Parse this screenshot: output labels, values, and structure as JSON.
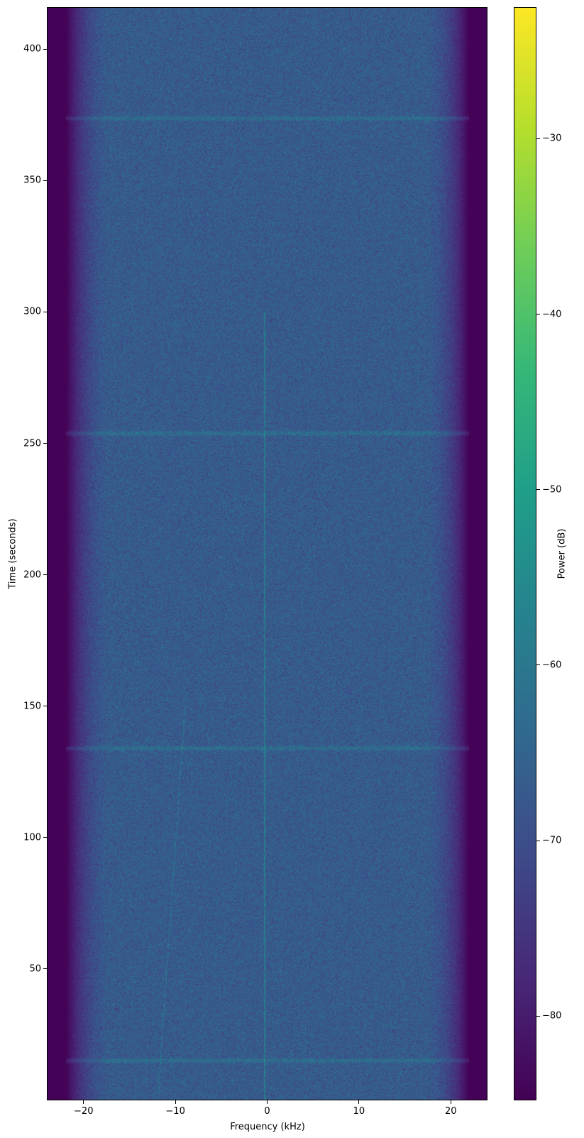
{
  "chart_data": {
    "type": "heatmap",
    "title": "",
    "xlabel": "Frequency (kHz)",
    "ylabel": "Time (seconds)",
    "colorbar_label": "Power (dB)",
    "colormap": "viridis",
    "xlim": [
      -24,
      24
    ],
    "ylim": [
      0,
      416
    ],
    "clim": [
      -84.8,
      -22.5
    ],
    "xticks": [
      -20,
      -10,
      0,
      10,
      20
    ],
    "xtick_labels": [
      "−20",
      "−10",
      "0",
      "10",
      "20"
    ],
    "yticks": [
      50,
      100,
      150,
      200,
      250,
      300,
      350,
      400
    ],
    "ytick_labels": [
      "50",
      "100",
      "150",
      "200",
      "250",
      "300",
      "350",
      "400"
    ],
    "cticks": [
      -80,
      -70,
      -60,
      -50,
      -40,
      -30
    ],
    "ctick_labels": [
      "−80",
      "−70",
      "−60",
      "−50",
      "−40",
      "−30"
    ],
    "background_power_db": -67,
    "edge_power_db": -84.5,
    "passband_edge_khz": [
      -22,
      22
    ],
    "horizontal_bursts_seconds": [
      15,
      134,
      254,
      374
    ],
    "vertical_tone_khz": -0.3,
    "grid": false
  }
}
